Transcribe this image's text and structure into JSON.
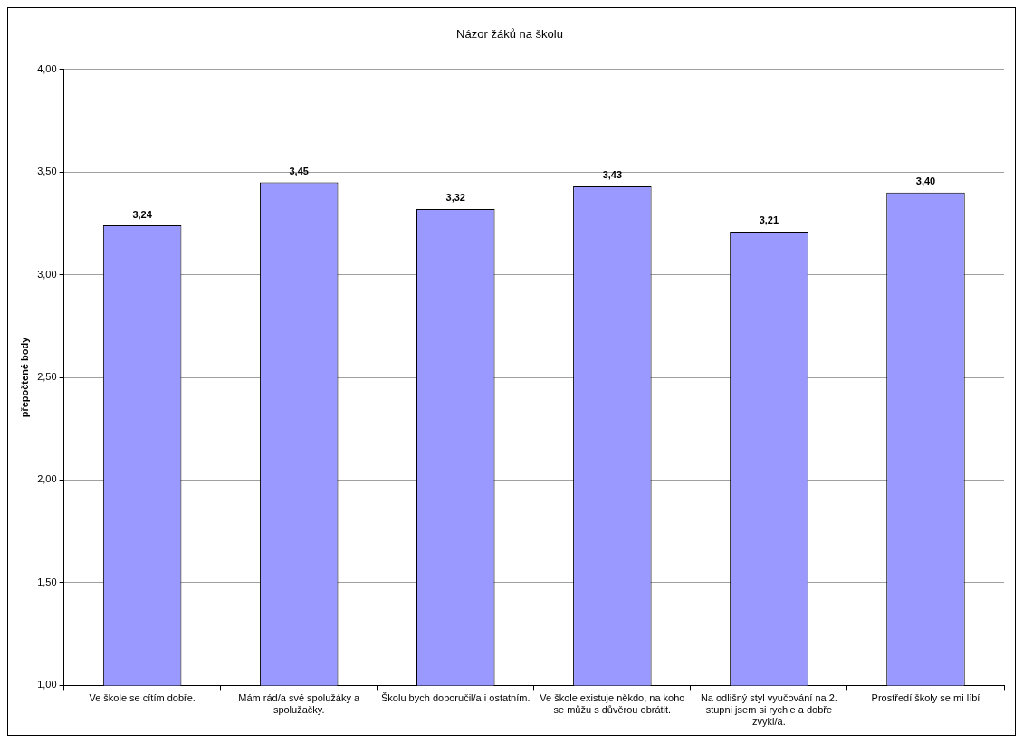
{
  "chart_data": {
    "type": "bar",
    "title": "Názor žáků na školu",
    "ylabel": "přepočtené body",
    "categories": [
      "Ve škole se cítím dobře.",
      "Mám rád/a své spolužáky a spolužačky.",
      "Školu bych doporučil/a i ostatním.",
      "Ve škole existuje někdo, na koho se můžu s důvěrou obrátit.",
      "Na odlišný styl vyučování na 2. stupni jsem si rychle a dobře zvykl/a.",
      "Prostředí školy se mi líbí"
    ],
    "values": [
      3.24,
      3.45,
      3.32,
      3.43,
      3.21,
      3.4
    ],
    "value_labels": [
      "3,24",
      "3,45",
      "3,32",
      "3,43",
      "3,21",
      "3,40"
    ],
    "color": "#9999ff",
    "ylim": [
      1,
      4
    ],
    "yticks": [
      {
        "value": 1,
        "label": "1,00"
      },
      {
        "value": 1.5,
        "label": "1,50"
      },
      {
        "value": 2,
        "label": "2,00"
      },
      {
        "value": 2.5,
        "label": "2,50"
      },
      {
        "value": 3,
        "label": "3,00"
      },
      {
        "value": 3.5,
        "label": "3,50"
      },
      {
        "value": 4,
        "label": "4,00"
      }
    ],
    "grid": "y",
    "legend": false
  }
}
